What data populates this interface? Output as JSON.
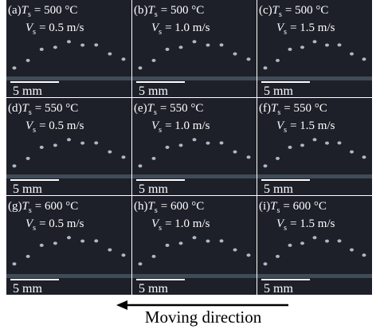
{
  "symbols": {
    "temperature": "T",
    "velocity": "V",
    "subscript": "s"
  },
  "panels": [
    {
      "label": "(a)",
      "temperature": "= 500 °C",
      "velocity": "= 0.5 m/s",
      "scale": "5 mm"
    },
    {
      "label": "(b)",
      "temperature": "= 500 °C",
      "velocity": "= 1.0 m/s",
      "scale": "5 mm"
    },
    {
      "label": "(c)",
      "temperature": "= 500 °C",
      "velocity": "= 1.5 m/s",
      "scale": "5 mm"
    },
    {
      "label": "(d)",
      "temperature": "= 550 °C",
      "velocity": "= 0.5 m/s",
      "scale": "5 mm"
    },
    {
      "label": "(e)",
      "temperature": "= 550 °C",
      "velocity": "= 1.0 m/s",
      "scale": "5 mm"
    },
    {
      "label": "(f)",
      "temperature": "= 550 °C",
      "velocity": "= 1.5 m/s",
      "scale": "5 mm"
    },
    {
      "label": "(g)",
      "temperature": "= 600 °C",
      "velocity": "= 0.5 m/s",
      "scale": "5 mm"
    },
    {
      "label": "(h)",
      "temperature": "= 600 °C",
      "velocity": "= 1.0 m/s",
      "scale": "5 mm"
    },
    {
      "label": "(i)",
      "temperature": "= 600 °C",
      "velocity": "= 1.5 m/s",
      "scale": "5 mm"
    }
  ],
  "caption": "Moving direction"
}
